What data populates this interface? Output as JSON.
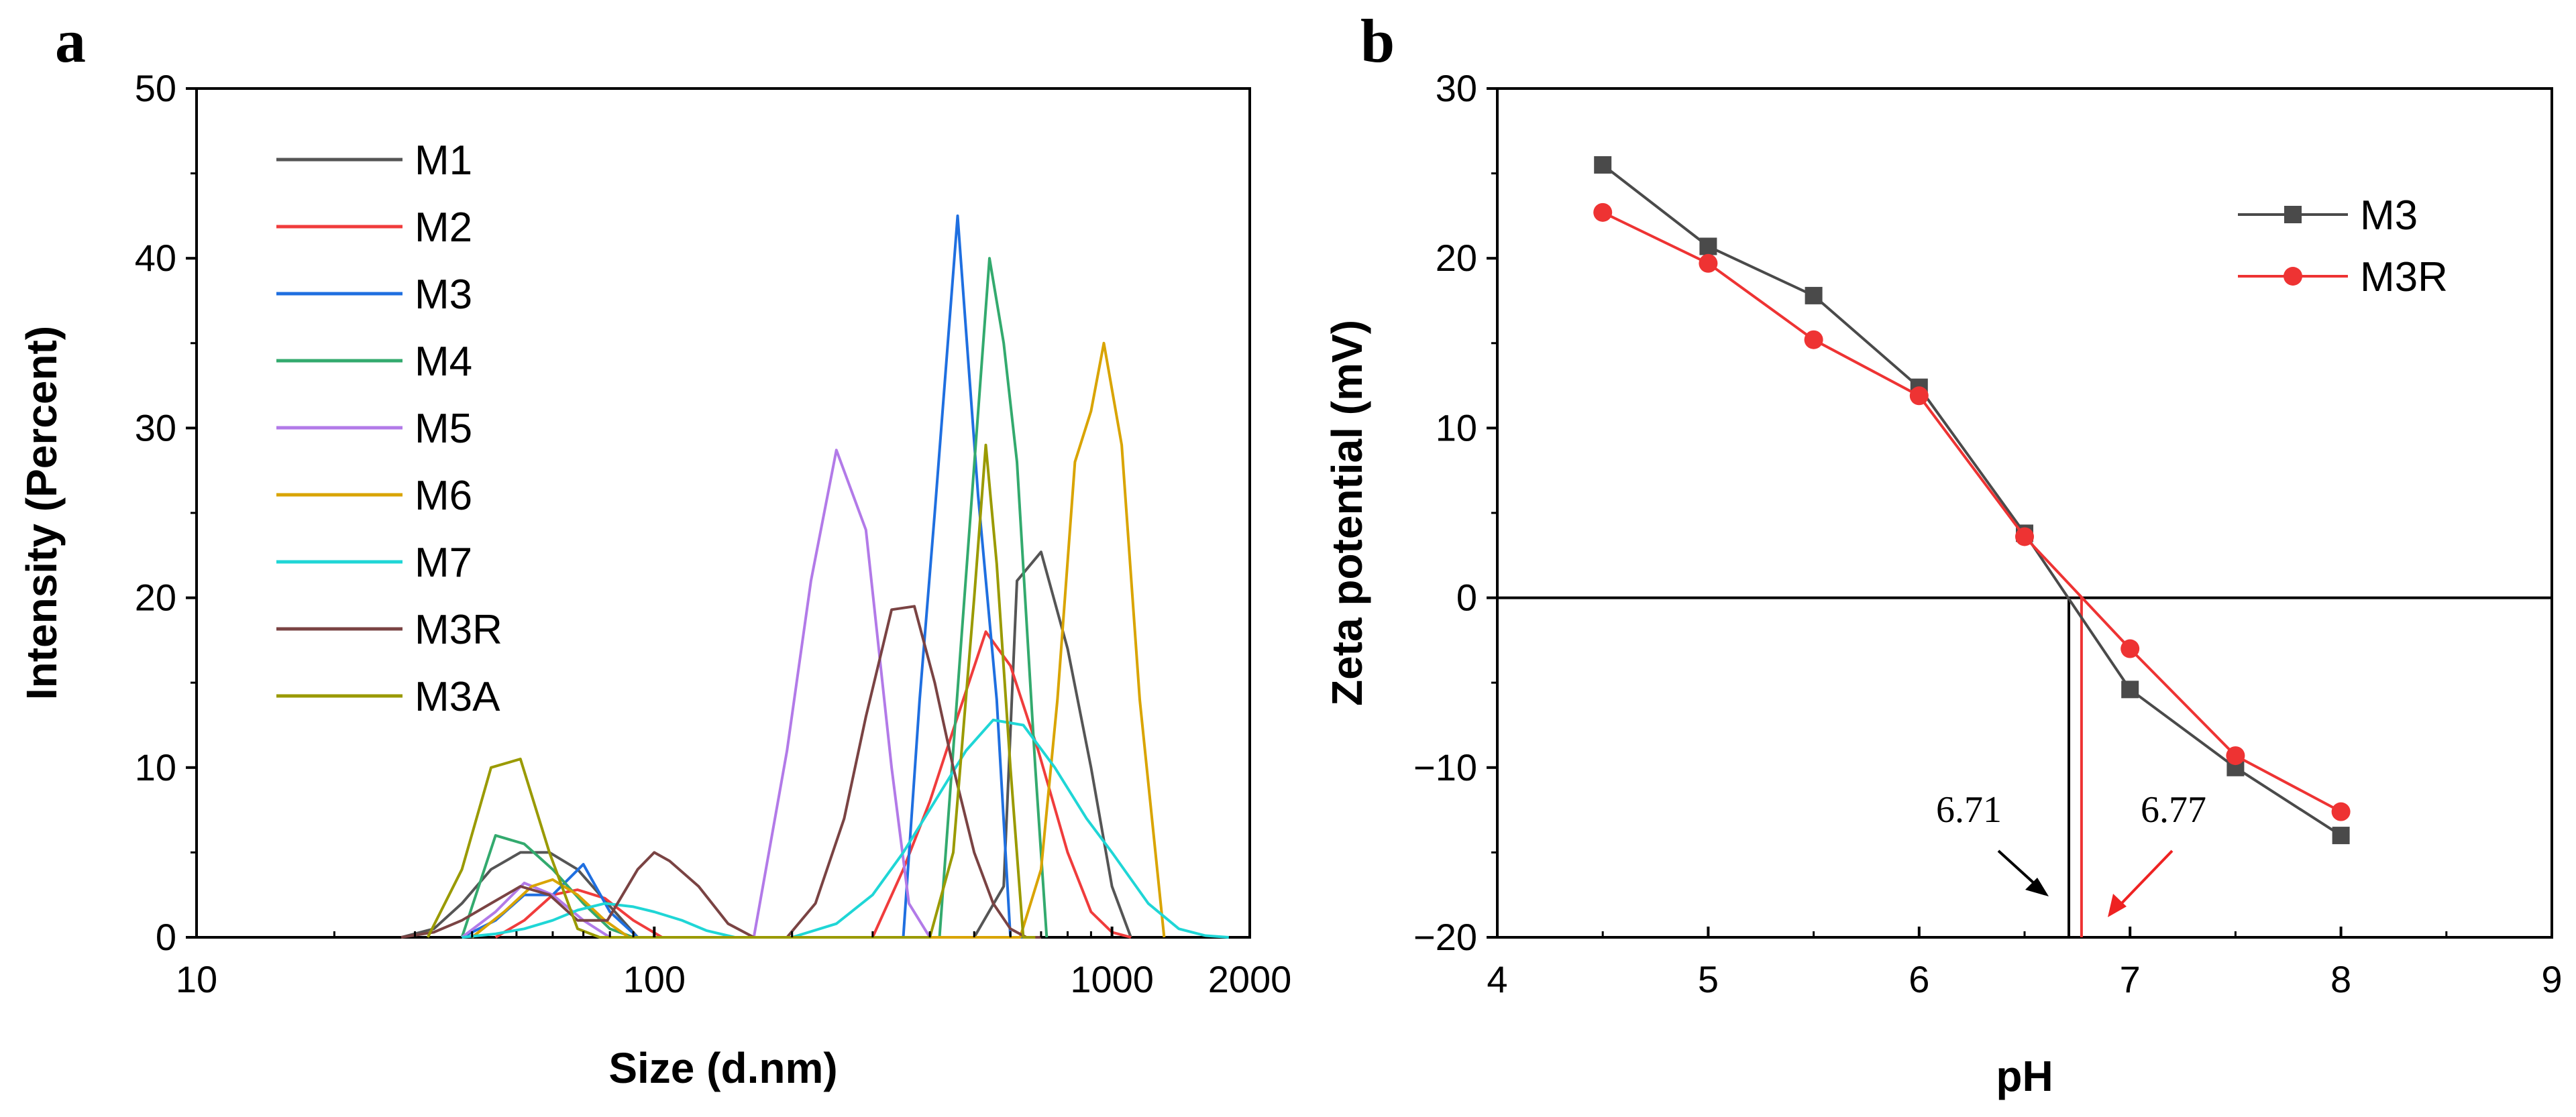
{
  "colors": {
    "M1": "#555555",
    "M2": "#f03c3c",
    "M3": "#1f6fe0",
    "M4": "#33aa6e",
    "M5": "#b27ae8",
    "M6": "#d9a400",
    "M7": "#1fd6d6",
    "M3R": "#7a4343",
    "M3A": "#9a9a00",
    "zeta_M3": "#4a4a4a",
    "zeta_M3R": "#ee3333",
    "arrow_black": "#000000",
    "arrow_red": "#ee2222"
  },
  "chart_data": [
    {
      "panel": "a",
      "type": "line",
      "xscale": "log",
      "title": "",
      "xlabel": "Size (d.nm)",
      "ylabel": "Intensity (Percent)",
      "xlim": [
        10,
        2000
      ],
      "ylim": [
        0,
        50
      ],
      "xticks": [
        {
          "value": 10,
          "label": "10"
        },
        {
          "value": 100,
          "label": "100"
        },
        {
          "value": 1000,
          "label": "1000"
        },
        {
          "value": 2000,
          "label": "2000"
        }
      ],
      "yticks": [
        {
          "value": 0,
          "label": "0"
        },
        {
          "value": 10,
          "label": "10"
        },
        {
          "value": 20,
          "label": "20"
        },
        {
          "value": 30,
          "label": "30"
        },
        {
          "value": 40,
          "label": "40"
        },
        {
          "value": 50,
          "label": "50"
        }
      ],
      "legend_position": "top-left",
      "series": [
        {
          "name": "M1",
          "x": [
            28,
            33,
            38,
            44,
            51,
            59,
            68,
            79,
            92,
            106,
            500,
            580,
            620,
            700,
            800,
            900,
            1000,
            1100
          ],
          "values": [
            0,
            0.5,
            2,
            4,
            5,
            5,
            4,
            2,
            0,
            0,
            0,
            3,
            21,
            22.7,
            17,
            10,
            3,
            0
          ]
        },
        {
          "name": "M2",
          "x": [
            45,
            52,
            60,
            68,
            78,
            90,
            104,
            300,
            350,
            400,
            460,
            530,
            600,
            690,
            800,
            900,
            1000,
            1100
          ],
          "values": [
            0,
            1,
            2.5,
            2.8,
            2.3,
            1,
            0,
            0,
            4,
            8,
            13,
            18,
            16,
            11,
            5,
            1.5,
            0.3,
            0
          ]
        },
        {
          "name": "M3",
          "x": [
            38,
            45,
            52,
            60,
            70,
            80,
            92,
            350,
            380,
            410,
            460,
            510,
            560,
            600,
            640
          ],
          "values": [
            0,
            1,
            2.5,
            2.5,
            4.3,
            1.5,
            0,
            0,
            14,
            25,
            42.5,
            26,
            14,
            0,
            0
          ]
        },
        {
          "name": "M4",
          "x": [
            38,
            45,
            52,
            60,
            70,
            80,
            90,
            420,
            470,
            520,
            540,
            580,
            620,
            680,
            720
          ],
          "values": [
            0,
            6,
            5.5,
            4,
            2,
            0.5,
            0,
            0,
            18,
            34,
            40,
            35,
            28,
            10,
            0
          ]
        },
        {
          "name": "M5",
          "x": [
            38,
            45,
            52,
            60,
            70,
            80,
            165,
            195,
            220,
            250,
            290,
            330,
            360,
            400
          ],
          "values": [
            0,
            1.5,
            3.2,
            2.5,
            1,
            0,
            0,
            11,
            21,
            28.7,
            24,
            10,
            2,
            0
          ]
        },
        {
          "name": "M6",
          "x": [
            40,
            47,
            54,
            60,
            68,
            78,
            88,
            630,
            700,
            760,
            830,
            900,
            960,
            1050,
            1150,
            1300
          ],
          "values": [
            0,
            1.5,
            3,
            3.4,
            2.5,
            1,
            0,
            0,
            4,
            14,
            28,
            31,
            35,
            29,
            14,
            0
          ]
        },
        {
          "name": "M7",
          "x": [
            38,
            45,
            52,
            60,
            68,
            78,
            90,
            100,
            115,
            130,
            150,
            200,
            250,
            300,
            350,
            410,
            480,
            550,
            640,
            750,
            880,
            1000,
            1200,
            1400,
            1600,
            1800
          ],
          "values": [
            0,
            0.2,
            0.5,
            1,
            1.6,
            2,
            1.8,
            1.5,
            1,
            0.4,
            0,
            0,
            0.8,
            2.5,
            5,
            8,
            11,
            12.8,
            12.5,
            10,
            7,
            5,
            2,
            0.5,
            0.1,
            0
          ]
        },
        {
          "name": "M3R",
          "x": [
            28,
            33,
            38,
            44,
            51,
            59,
            68,
            79,
            92,
            100,
            108,
            125,
            145,
            165,
            195,
            225,
            260,
            290,
            330,
            370,
            410,
            450,
            500,
            550,
            600,
            650,
            700
          ],
          "values": [
            0,
            0.3,
            1,
            2,
            3,
            2.5,
            1,
            1,
            4,
            5,
            4.5,
            3,
            0.8,
            0,
            0,
            2,
            7,
            13,
            19.3,
            19.5,
            15,
            10,
            5,
            2,
            0.5,
            0,
            0
          ]
        },
        {
          "name": "M3A",
          "x": [
            32,
            38,
            44,
            51,
            59,
            68,
            76,
            400,
            450,
            500,
            530,
            560,
            600,
            640,
            680
          ],
          "values": [
            0,
            4,
            10,
            10.5,
            5,
            0.5,
            0,
            0,
            5,
            20,
            29,
            22,
            10,
            0,
            0
          ]
        }
      ]
    },
    {
      "panel": "b",
      "type": "line",
      "title": "",
      "xlabel": "pH",
      "ylabel": "Zeta potential (mV)",
      "xlim": [
        4,
        9
      ],
      "ylim": [
        -20,
        30
      ],
      "xticks": [
        {
          "value": 4,
          "label": "4"
        },
        {
          "value": 5,
          "label": "5"
        },
        {
          "value": 6,
          "label": "6"
        },
        {
          "value": 7,
          "label": "7"
        },
        {
          "value": 8,
          "label": "8"
        },
        {
          "value": 9,
          "label": "9"
        }
      ],
      "yticks": [
        {
          "value": -20,
          "label": "−20"
        },
        {
          "value": -10,
          "label": "−10"
        },
        {
          "value": 0,
          "label": "0"
        },
        {
          "value": 10,
          "label": "10"
        },
        {
          "value": 20,
          "label": "20"
        },
        {
          "value": 30,
          "label": "30"
        }
      ],
      "zero_line": 0,
      "legend_position": "top-right",
      "series": [
        {
          "name": "M3",
          "marker": "square",
          "x": [
            4.5,
            5,
            5.5,
            6,
            6.5,
            7,
            7.5,
            8
          ],
          "values": [
            25.5,
            20.7,
            17.8,
            12.4,
            3.8,
            -5.4,
            -10,
            -14
          ]
        },
        {
          "name": "M3R",
          "marker": "circle",
          "x": [
            4.5,
            5,
            5.5,
            6,
            6.5,
            7,
            7.5,
            8
          ],
          "values": [
            22.7,
            19.7,
            15.2,
            11.9,
            3.6,
            -3,
            -9.3,
            -12.6
          ]
        }
      ],
      "annotations": [
        {
          "label": "6.71",
          "x": 6.71,
          "series": "M3"
        },
        {
          "label": "6.77",
          "x": 6.77,
          "series": "M3R"
        }
      ]
    }
  ],
  "panels": {
    "a": "a",
    "b": "b"
  }
}
